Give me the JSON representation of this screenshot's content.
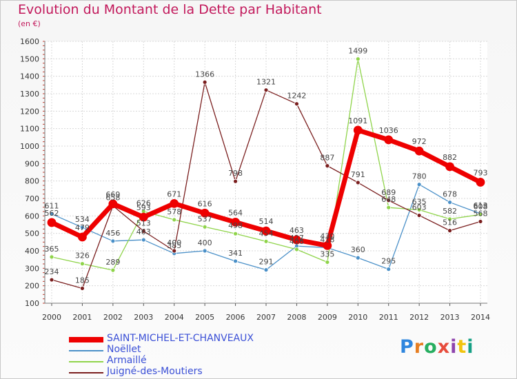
{
  "title": "Evolution du Montant de la Dette par Habitant",
  "subtitle": "(en €)",
  "logo": "Proxiti",
  "chart_data": {
    "type": "line",
    "title": "Evolution du Montant de la Dette par Habitant",
    "ylabel": "(en €)",
    "ylim": [
      100,
      1600
    ],
    "yticks": [
      100,
      200,
      300,
      400,
      500,
      600,
      700,
      800,
      900,
      1000,
      1100,
      1200,
      1300,
      1400,
      1500,
      1600
    ],
    "categories": [
      "2000",
      "2001",
      "2002",
      "2003",
      "2004",
      "2005",
      "2006",
      "2007",
      "2008",
      "2009",
      "2010",
      "2011",
      "2012",
      "2013",
      "2014"
    ],
    "grid": true,
    "legend_position": "bottom-left",
    "series": [
      {
        "name": "SAINT-MICHEL-ET-CHANVEAUX",
        "color": "#ee0000",
        "values": [
          562,
          479,
          669,
          593,
          671,
          616,
          564,
          514,
          463,
          430,
          1091,
          1036,
          972,
          882,
          793
        ]
      },
      {
        "name": "Noëllet",
        "color": "#4a90c8",
        "values": [
          611,
          534,
          456,
          463,
          385,
          400,
          341,
          291,
          427,
          418,
          360,
          295,
          780,
          678,
          613
        ]
      },
      {
        "name": "Armaillé",
        "color": "#8fd44a",
        "values": [
          365,
          326,
          289,
          626,
          578,
          537,
          498,
          454,
          408,
          335,
          1499,
          648,
          635,
          582,
          608
        ]
      },
      {
        "name": "Juigné-des-Moutiers",
        "color": "#7a1e1e",
        "values": [
          234,
          185,
          658,
          513,
          400,
          1366,
          798,
          1321,
          1242,
          887,
          791,
          689,
          603,
          516,
          568
        ]
      }
    ]
  }
}
